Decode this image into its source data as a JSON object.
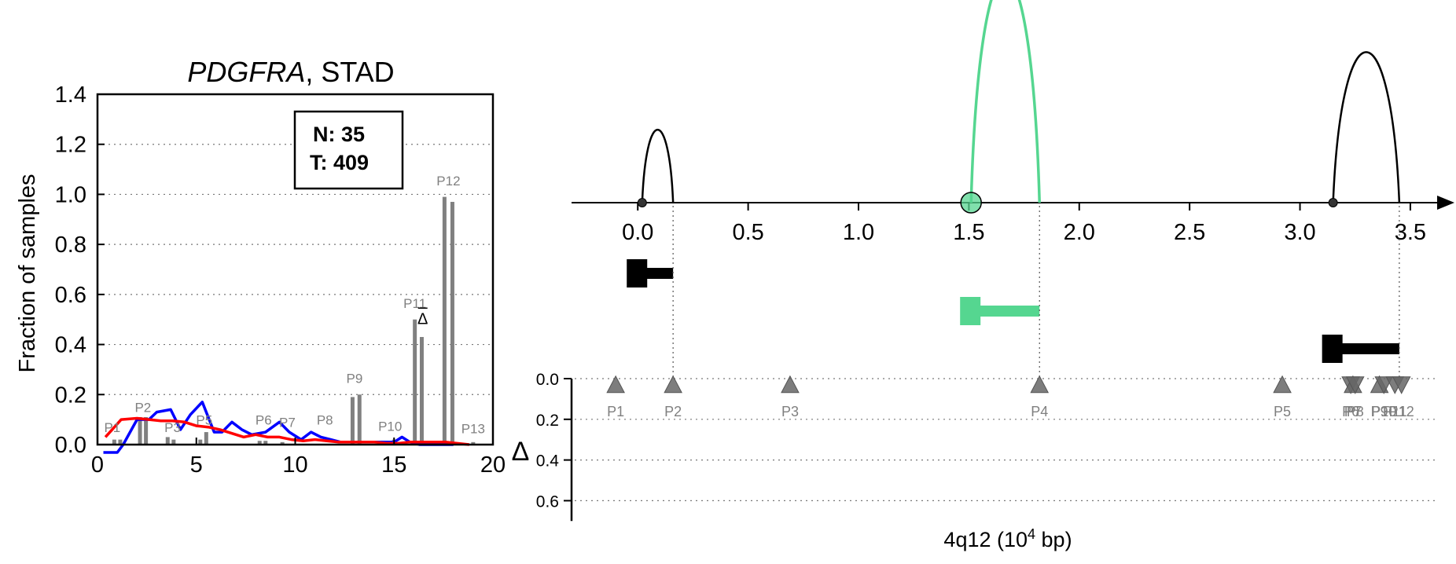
{
  "chart_data": [
    {
      "type": "bar",
      "title_gene": "PDGFRA",
      "title_rest": ", STAD",
      "ylabel": "Fraction of samples",
      "xlim": [
        0,
        20
      ],
      "ylim": [
        0,
        1.4
      ],
      "xticks": [
        0,
        5,
        10,
        15,
        20
      ],
      "xtick_labels": [
        "0",
        "5",
        "10",
        "15",
        "20"
      ],
      "yticks": [
        0.0,
        0.2,
        0.4,
        0.6,
        0.8,
        1.0,
        1.2,
        1.4
      ],
      "ytick_labels": [
        "0.0",
        "0.2",
        "0.4",
        "0.6",
        "0.8",
        "1.0",
        "1.2",
        "1.4"
      ],
      "grid": "y-dotted",
      "box_n": "N: 35",
      "box_t": "T: 409",
      "delta_marker": "Δ",
      "delta_marker_pos": [
        16.45,
        0.47
      ],
      "bars": [
        {
          "x": 0.85,
          "y": 0.02
        },
        {
          "x": 1.15,
          "y": 0.02
        },
        {
          "x": 2.15,
          "y": 0.11
        },
        {
          "x": 2.45,
          "y": 0.11
        },
        {
          "x": 3.55,
          "y": 0.03
        },
        {
          "x": 3.85,
          "y": 0.02
        },
        {
          "x": 5.2,
          "y": 0.02
        },
        {
          "x": 5.5,
          "y": 0.05
        },
        {
          "x": 8.2,
          "y": 0.015
        },
        {
          "x": 8.5,
          "y": 0.015
        },
        {
          "x": 9.35,
          "y": 0.01
        },
        {
          "x": 12.9,
          "y": 0.19
        },
        {
          "x": 13.25,
          "y": 0.2
        },
        {
          "x": 15.0,
          "y": 0.02
        },
        {
          "x": 16.05,
          "y": 0.5
        },
        {
          "x": 16.4,
          "y": 0.43
        },
        {
          "x": 17.55,
          "y": 0.99
        },
        {
          "x": 17.95,
          "y": 0.97
        },
        {
          "x": 19.0,
          "y": 0.01
        }
      ],
      "bar_labels": [
        {
          "text": "P1",
          "x": 0.75,
          "y": 0.035
        },
        {
          "text": "P2",
          "x": 2.3,
          "y": 0.115
        },
        {
          "text": "P3",
          "x": 3.8,
          "y": 0.035
        },
        {
          "text": "P5",
          "x": 5.4,
          "y": 0.065
        },
        {
          "text": "P6",
          "x": 8.4,
          "y": 0.065
        },
        {
          "text": "P7",
          "x": 9.6,
          "y": 0.055
        },
        {
          "text": "P8",
          "x": 11.5,
          "y": 0.065
        },
        {
          "text": "P9",
          "x": 13.0,
          "y": 0.23
        },
        {
          "text": "P10",
          "x": 14.8,
          "y": 0.04
        },
        {
          "text": "P11",
          "x": 16.05,
          "y": 0.53
        },
        {
          "text": "P12",
          "x": 17.75,
          "y": 1.02
        },
        {
          "text": "P13",
          "x": 19.0,
          "y": 0.03
        }
      ],
      "series": [
        {
          "color": "#0000ff",
          "x": [
            0.3,
            1.0,
            1.3,
            2.0,
            2.6,
            3.0,
            3.7,
            4.2,
            4.7,
            5.3,
            5.9,
            6.3,
            6.8,
            7.3,
            7.8,
            8.5,
            9.2,
            9.7,
            10.3,
            10.8,
            11.3,
            11.8,
            12.3,
            13.0,
            14.0,
            15.0,
            15.4,
            15.8,
            16.3,
            17.0,
            18.0
          ],
          "y": [
            -0.05,
            -0.05,
            0.0,
            0.1,
            0.1,
            0.13,
            0.14,
            0.06,
            0.12,
            0.17,
            0.05,
            0.05,
            0.09,
            0.06,
            0.04,
            0.05,
            0.09,
            0.05,
            0.02,
            0.05,
            0.03,
            0.02,
            0.01,
            0.01,
            0.01,
            0.01,
            0.03,
            0.01,
            0.0,
            0.0,
            0.0
          ]
        },
        {
          "color": "#ff0000",
          "x": [
            0.4,
            1.2,
            2.0,
            2.6,
            3.2,
            3.8,
            4.4,
            5.0,
            5.6,
            6.2,
            6.8,
            7.4,
            8.0,
            8.6,
            9.2,
            9.8,
            10.4,
            11.0,
            11.6,
            12.2,
            12.8,
            13.4,
            14.0,
            14.6,
            15.2,
            15.8,
            16.4,
            17.0,
            17.6,
            18.2,
            18.8
          ],
          "y": [
            0.03,
            0.1,
            0.105,
            0.1,
            0.095,
            0.095,
            0.09,
            0.075,
            0.07,
            0.06,
            0.045,
            0.03,
            0.04,
            0.03,
            0.03,
            0.02,
            0.015,
            0.02,
            0.015,
            0.01,
            0.01,
            0.01,
            0.01,
            0.005,
            0.005,
            0.01,
            0.01,
            0.01,
            0.01,
            0.005,
            0.0
          ]
        }
      ]
    },
    {
      "type": "other",
      "xlabel_main": "4q12 (10",
      "xlabel_sup": "4",
      "xlabel_tail": " bp)",
      "xlim": [
        -0.3,
        3.6
      ],
      "xticks": [
        0.0,
        0.5,
        1.0,
        1.5,
        2.0,
        2.5,
        3.0,
        3.5
      ],
      "xtick_labels": [
        "0.0",
        "0.5",
        "1.0",
        "1.5",
        "2.0",
        "2.5",
        "3.0",
        "3.5"
      ],
      "arcs": [
        {
          "start": 0.02,
          "end": 0.16,
          "peak": 0.63,
          "color": "#000000",
          "start_dot": "small"
        },
        {
          "start": 1.51,
          "end": 1.82,
          "peak": 1.95,
          "color": "#55d690",
          "start_dot": "large"
        },
        {
          "start": 3.15,
          "end": 3.45,
          "peak": 1.3,
          "color": "#000000",
          "start_dot": "small"
        }
      ],
      "exon_blocks": [
        {
          "start": 0.0,
          "end": 0.16,
          "row": 0,
          "color": "#000000"
        },
        {
          "start": 1.51,
          "end": 1.82,
          "row": 1,
          "color": "#55d690"
        },
        {
          "start": 3.15,
          "end": 3.45,
          "row": 2,
          "color": "#000000"
        }
      ],
      "delta_label": "Δ",
      "delta_ylim": [
        0.0,
        0.7
      ],
      "delta_yticks": [
        0.0,
        0.2,
        0.4,
        0.6
      ],
      "delta_ytick_labels": [
        "0.0",
        "0.2",
        "0.4",
        "0.6"
      ],
      "markers": [
        {
          "label": "P1",
          "x": -0.1,
          "y": 0.03,
          "dir": "up"
        },
        {
          "label": "P2",
          "x": 0.16,
          "y": 0.03,
          "dir": "up"
        },
        {
          "label": "P3",
          "x": 0.69,
          "y": 0.03,
          "dir": "up"
        },
        {
          "label": "P4",
          "x": 1.82,
          "y": 0.03,
          "dir": "up"
        },
        {
          "label": "P5",
          "x": 2.92,
          "y": 0.03,
          "dir": "up"
        },
        {
          "label": "P6",
          "x": 3.23,
          "y": 0.03,
          "dir": "down"
        },
        {
          "label": "P7",
          "x": 3.24,
          "y": 0.03,
          "dir": "up"
        },
        {
          "label": "P8",
          "x": 3.25,
          "y": 0.03,
          "dir": "down"
        },
        {
          "label": "P9",
          "x": 3.36,
          "y": 0.03,
          "dir": "up"
        },
        {
          "label": "P10",
          "x": 3.38,
          "y": 0.03,
          "dir": "down"
        },
        {
          "label": "P11",
          "x": 3.43,
          "y": 0.03,
          "dir": "down"
        },
        {
          "label": "P12",
          "x": 3.46,
          "y": 0.03,
          "dir": "down"
        }
      ]
    }
  ]
}
